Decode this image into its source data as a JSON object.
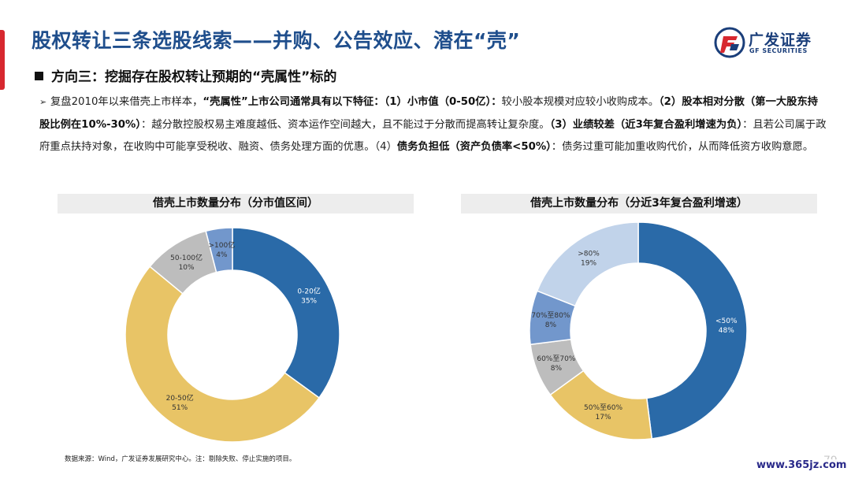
{
  "header": {
    "title": "股权转让三条选股线索——并购、公告效应、潜在“壳”",
    "logo_cn": "广发证券",
    "logo_en": "GF SECURITIES"
  },
  "subhead": "方向三：挖掘存在股权转让预期的“壳属性”标的",
  "paragraph": {
    "p1": "复盘2010年以来借壳上市样本，",
    "b1": "“壳属性”上市公司通常具有以下特征：（1）小市值（0-50亿）：",
    "p2": "较小股本规模对应较小收购成本。",
    "b2": "（2）股本相对分散（第一大股东持股比例在10%-30%）",
    "p3": "：越分散控股权易主难度越低、资本运作空间越大，且不能过于分散而提高转让复杂度。",
    "b3": "（3）业绩较差（近3年复合盈利增速为负）",
    "p4": "：且若公司属于政府重点扶持对象，在收购中可能享受税收、融资、债务处理方面的优惠。（4）",
    "b4": "债务负担低（资产负债率<50%）",
    "p5": "：债务过重可能加重收购代价，从而降低资方收购意愿。"
  },
  "chart_data": [
    {
      "type": "pie",
      "title": "借壳上市数量分布（分市值区间）",
      "slices": [
        {
          "category": "0-20亿",
          "value": 35,
          "label": "35%",
          "color": "#2a6aa8"
        },
        {
          "category": "20-50亿",
          "value": 51,
          "label": "51%",
          "color": "#e8c466"
        },
        {
          "category": "50-100亿",
          "value": 10,
          "label": "10%",
          "color": "#bdbdbd"
        },
        {
          "category": ">100亿",
          "value": 4,
          "label": "4%",
          "color": "#7297cc"
        }
      ]
    },
    {
      "type": "pie",
      "title": "借壳上市数量分布（分近3年复合盈利增速）",
      "slices": [
        {
          "category": "<50%",
          "value": 48,
          "label": "48%",
          "color": "#2a6aa8"
        },
        {
          "category": "50%至60%",
          "value": 17,
          "label": "17%",
          "color": "#e8c466"
        },
        {
          "category": "60%至70%",
          "value": 8,
          "label": "8%",
          "color": "#bdbdbd"
        },
        {
          "category": "70%至80%",
          "value": 8,
          "label": "8%",
          "color": "#7297cc"
        },
        {
          "category": ">80%",
          "value": 19,
          "label": "19%",
          "color": "#c1d3ea"
        }
      ]
    }
  ],
  "footnote": "数据来源：Wind，广发证券发展研究中心。注：剔除失败、停止实施的项目。",
  "page_number": "79",
  "watermark": "www.365jz.com"
}
